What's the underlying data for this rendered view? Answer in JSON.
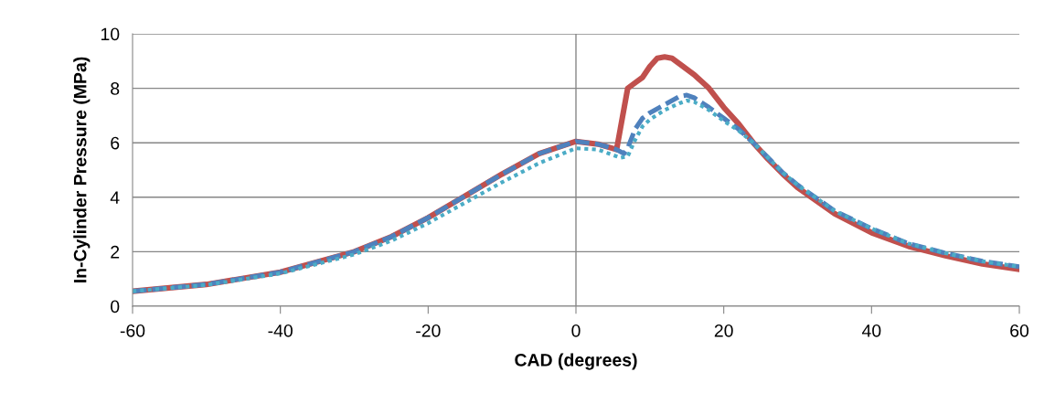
{
  "chart_data": {
    "type": "line",
    "xlabel": "CAD (degrees)",
    "ylabel": "In-Cylinder Pressure (MPa)",
    "xlim": [
      -60,
      60
    ],
    "xticks": [
      -60,
      -40,
      -20,
      0,
      20,
      40,
      60
    ],
    "ylim": [
      0,
      10
    ],
    "yticks": [
      0,
      2,
      4,
      6,
      8,
      10
    ],
    "grid": "y",
    "legend": false,
    "ref_lines": [
      {
        "axis": "x",
        "value": 0,
        "color": "#868686"
      }
    ],
    "series": [
      {
        "color": "#c0504d",
        "line_style": "solid",
        "x": [
          -60,
          -50,
          -40,
          -30,
          -25,
          -20,
          -15,
          -10,
          -5,
          0,
          3,
          5.5,
          6,
          7,
          8,
          9,
          10,
          11,
          12,
          13,
          14,
          16,
          18,
          20,
          22,
          24,
          26,
          28,
          30,
          35,
          40,
          45,
          50,
          55,
          60
        ],
        "values": [
          0.55,
          0.8,
          1.25,
          2.0,
          2.55,
          3.25,
          4.05,
          4.85,
          5.6,
          6.05,
          5.95,
          5.75,
          6.5,
          8.0,
          8.2,
          8.4,
          8.8,
          9.1,
          9.15,
          9.1,
          8.9,
          8.5,
          8.0,
          7.3,
          6.7,
          6.0,
          5.4,
          4.85,
          4.35,
          3.4,
          2.7,
          2.2,
          1.85,
          1.55,
          1.35
        ]
      },
      {
        "color": "#4f81bd",
        "line_style": "dashed",
        "x": [
          -60,
          -50,
          -40,
          -30,
          -25,
          -20,
          -15,
          -10,
          -5,
          0,
          3,
          5.5,
          6.5,
          7,
          8,
          9,
          10,
          12,
          14,
          15,
          16,
          18,
          20,
          22,
          24,
          26,
          28,
          30,
          35,
          40,
          45,
          50,
          55,
          60
        ],
        "values": [
          0.55,
          0.8,
          1.25,
          2.0,
          2.55,
          3.25,
          4.05,
          4.85,
          5.6,
          6.05,
          5.95,
          5.75,
          5.6,
          5.8,
          6.5,
          6.9,
          7.1,
          7.4,
          7.7,
          7.75,
          7.65,
          7.3,
          6.9,
          6.5,
          6.0,
          5.45,
          4.9,
          4.45,
          3.5,
          2.85,
          2.3,
          1.95,
          1.65,
          1.45
        ]
      },
      {
        "color": "#4bacc6",
        "line_style": "dotted",
        "x": [
          -60,
          -50,
          -40,
          -30,
          -25,
          -20,
          -15,
          -10,
          -5,
          0,
          3,
          5,
          6,
          7,
          8,
          9,
          10,
          12,
          14,
          15,
          16,
          18,
          20,
          22,
          24,
          26,
          28,
          30,
          35,
          40,
          45,
          50,
          55,
          60
        ],
        "values": [
          0.55,
          0.78,
          1.2,
          1.9,
          2.4,
          3.05,
          3.8,
          4.55,
          5.25,
          5.8,
          5.75,
          5.55,
          5.45,
          5.5,
          6.1,
          6.6,
          6.85,
          7.2,
          7.45,
          7.55,
          7.5,
          7.2,
          6.8,
          6.45,
          6.0,
          5.45,
          4.9,
          4.45,
          3.5,
          2.85,
          2.3,
          1.95,
          1.65,
          1.45
        ]
      }
    ]
  }
}
